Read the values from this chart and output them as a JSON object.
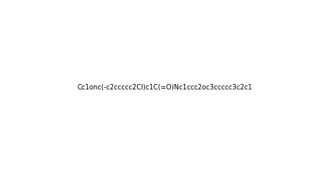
{
  "smiles": "Cc1onc(-c2ccccc2Cl)c1C(=O)Nc1ccc2oc3ccccc3c2c1",
  "background_color": "#ffffff",
  "figsize": [
    4.17,
    2.21
  ],
  "dpi": 100,
  "title": ""
}
